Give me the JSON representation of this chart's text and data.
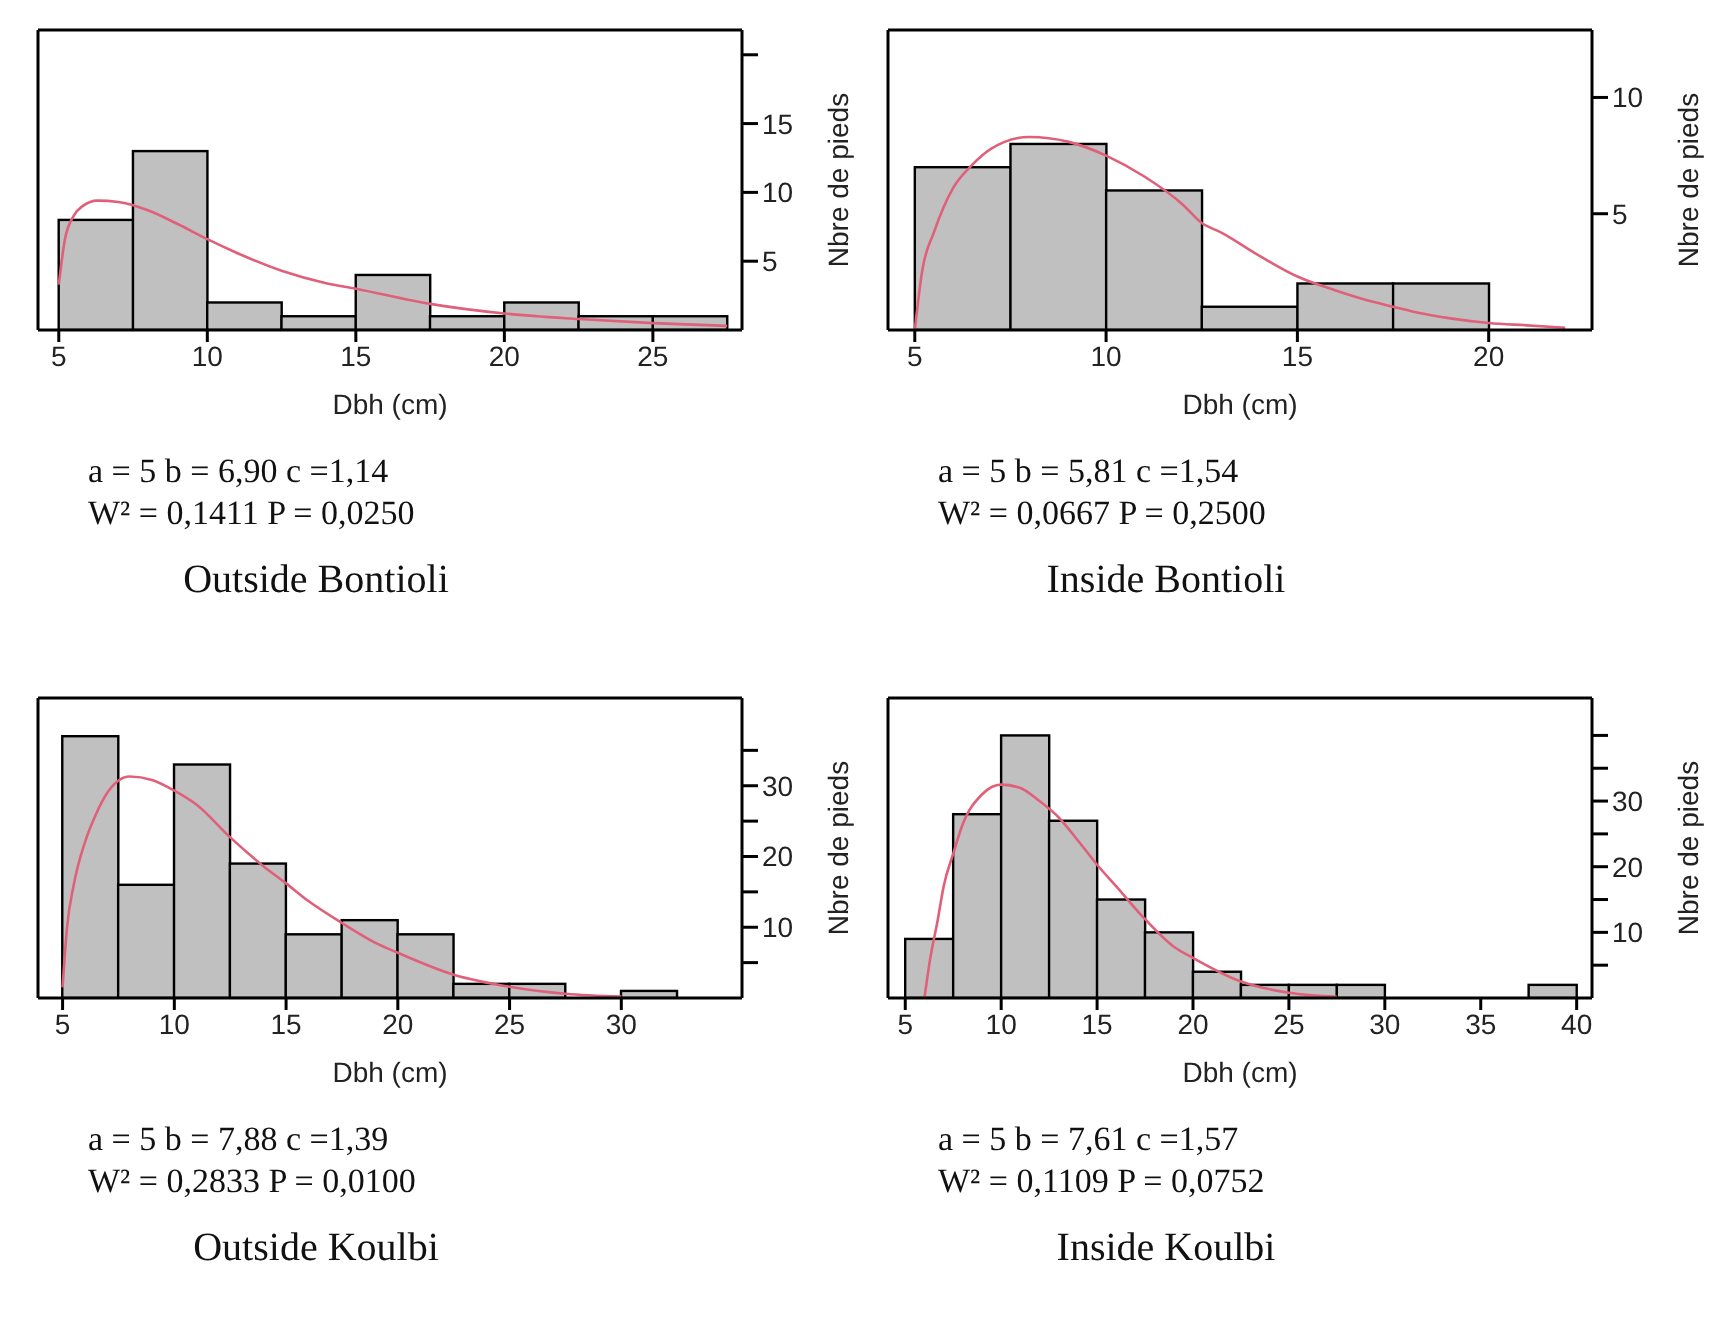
{
  "chart_data": [
    {
      "type": "histogram",
      "title": "Outside Bontioli",
      "xlabel": "Dbh (cm)",
      "ylabel": "Nbre de pieds",
      "annotations": [
        "a = 5 b = 6,90 c =1,14",
        "W² = 0,1411 P = 0,0250"
      ],
      "bins": [
        5,
        7.5,
        10,
        12.5,
        15,
        17.5,
        20,
        22.5,
        25,
        27.5
      ],
      "series": [
        {
          "color": "#c0c0c0",
          "values": [
            8,
            13,
            2,
            1,
            4,
            1,
            2,
            1,
            1
          ]
        },
        {
          "type": "line",
          "color": "#e0607a",
          "x": [
            5,
            5.2,
            5.5,
            5.8,
            6.3,
            7,
            8,
            9,
            10,
            11,
            12.5,
            14,
            15,
            17.5,
            20,
            22.5,
            25,
            27.5
          ],
          "values": [
            3.3,
            6.5,
            8.3,
            9,
            9.4,
            9.3,
            8.7,
            7.7,
            6.6,
            5.6,
            4.3,
            3.4,
            3,
            1.9,
            1.2,
            0.8,
            0.5,
            0.3
          ]
        }
      ],
      "xlim": [
        4.3,
        28
      ],
      "xticks": [
        5,
        10,
        15,
        20,
        25
      ],
      "ylim": [
        0,
        21.8
      ],
      "yticks": [
        5,
        10,
        15,
        {
          "value": 20,
          "label": null
        }
      ]
    },
    {
      "type": "histogram",
      "title": "Inside Bontioli",
      "xlabel": "Dbh (cm)",
      "ylabel": "Nbre de pieds",
      "annotations": [
        "a = 5 b = 5,81 c =1,54",
        "W² = 0,0667 P = 0,2500"
      ],
      "bins": [
        5,
        7.5,
        10,
        12.5,
        15,
        17.5,
        20
      ],
      "series": [
        {
          "color": "#c0c0c0",
          "values": [
            7,
            8,
            6,
            1,
            2,
            2
          ]
        },
        {
          "type": "line",
          "color": "#e0607a",
          "x": [
            5,
            5.2,
            5.5,
            6,
            6.5,
            7,
            8,
            9,
            10,
            11,
            12,
            12.5,
            13,
            14,
            15,
            16,
            17,
            17.5,
            18,
            19,
            20,
            21,
            22
          ],
          "values": [
            0,
            2.6,
            4.2,
            6.1,
            7.1,
            7.8,
            8.3,
            8.1,
            7.5,
            6.6,
            5.4,
            4.6,
            4.2,
            3.2,
            2.3,
            1.7,
            1.2,
            1,
            0.8,
            0.5,
            0.3,
            0.2,
            0.1
          ]
        }
      ],
      "xlim": [
        4.3,
        22.7
      ],
      "xticks": [
        5,
        10,
        15,
        20
      ],
      "ylim": [
        0,
        12.9
      ],
      "yticks": [
        5,
        10
      ]
    },
    {
      "type": "histogram",
      "title": "Outside Koulbi",
      "xlabel": "Dbh (cm)",
      "ylabel": "Nbre de pieds",
      "annotations": [
        "a = 5 b = 7,88 c =1,39",
        "W² = 0,2833 P = 0,0100"
      ],
      "bins": [
        5,
        7.5,
        10,
        12.5,
        15,
        17.5,
        20,
        22.5,
        25,
        27.5,
        30,
        32.5
      ],
      "series": [
        {
          "color": "#c0c0c0",
          "values": [
            37,
            16,
            33,
            19,
            9,
            11,
            9,
            2,
            2,
            0,
            1
          ]
        },
        {
          "type": "line",
          "color": "#e0607a",
          "x": [
            5,
            5.2,
            5.5,
            6,
            6.5,
            7,
            8,
            9,
            10,
            11,
            12.5,
            14,
            15,
            16,
            17.5,
            19,
            20,
            22.5,
            25,
            27.5,
            30
          ],
          "values": [
            1.5,
            10,
            16,
            22,
            26,
            29,
            31.3,
            30.8,
            29.3,
            27.3,
            22.7,
            18.6,
            16.2,
            13.7,
            10.6,
            7.8,
            6.4,
            3.3,
            1.6,
            0.6,
            0.2
          ]
        }
      ],
      "xlim": [
        3.9,
        35.4
      ],
      "xticks": [
        5,
        10,
        15,
        20,
        25,
        30
      ],
      "ylim": [
        0,
        42.4
      ],
      "yticks": [
        {
          "value": 5,
          "label": null
        },
        10,
        {
          "value": 15,
          "label": null
        },
        20,
        {
          "value": 25,
          "label": null
        },
        30,
        {
          "value": 35,
          "label": null
        }
      ]
    },
    {
      "type": "histogram",
      "title": "Inside Koulbi",
      "xlabel": "Dbh (cm)",
      "ylabel": "Nbre de pieds",
      "annotations": [
        "a = 5 b = 7,61 c =1,57",
        "W² = 0,1109 P = 0,0752"
      ],
      "bins": [
        5,
        7.5,
        10,
        12.5,
        15,
        17.5,
        20,
        22.5,
        25,
        27.5,
        30,
        32.5,
        35,
        37.5,
        40
      ],
      "series": [
        {
          "color": "#c0c0c0",
          "values": [
            9,
            28,
            40,
            27,
            15,
            10,
            4,
            2,
            2,
            2,
            0,
            0,
            0,
            2
          ]
        },
        {
          "type": "line",
          "color": "#e0607a",
          "x": [
            6,
            6.3,
            6.7,
            7,
            7.5,
            8,
            9,
            10,
            11,
            12,
            13,
            14,
            15,
            16,
            17.5,
            19,
            20,
            22.5,
            25,
            27.5
          ],
          "values": [
            0,
            6,
            12,
            17,
            22,
            26.5,
            31,
            32.5,
            32,
            30,
            27.5,
            24,
            20.3,
            17,
            12,
            7.8,
            6.1,
            2.5,
            0.8,
            0.2
          ]
        }
      ],
      "xlim": [
        4.1,
        40.8
      ],
      "xticks": [
        5,
        10,
        15,
        20,
        25,
        30,
        35,
        40
      ],
      "ylim": [
        0,
        45.7
      ],
      "yticks": [
        {
          "value": 5,
          "label": null
        },
        10,
        {
          "value": 15,
          "label": null
        },
        20,
        {
          "value": 25,
          "label": null
        },
        30,
        {
          "value": 35,
          "label": null
        },
        {
          "value": 40,
          "label": null
        }
      ]
    }
  ]
}
